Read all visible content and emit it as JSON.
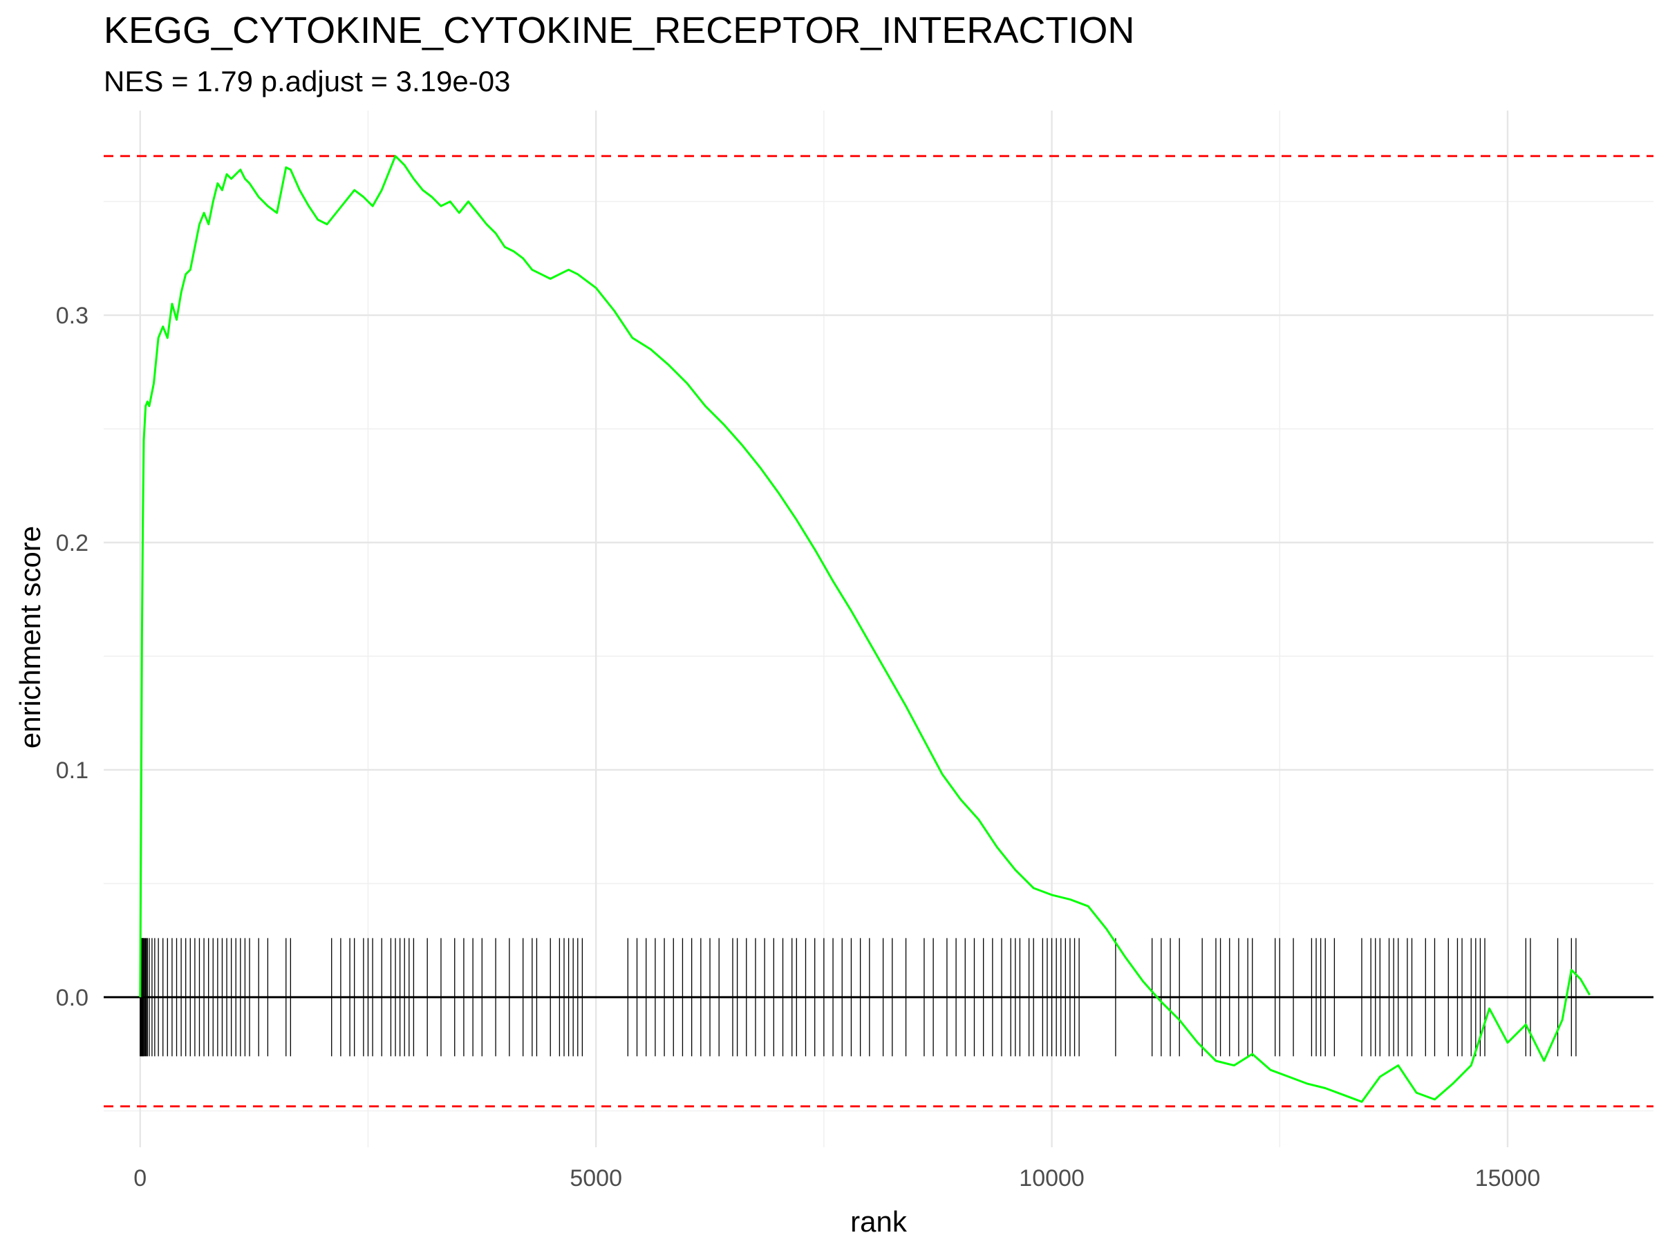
{
  "chart_data": {
    "type": "line",
    "title": "KEGG_CYTOKINE_CYTOKINE_RECEPTOR_INTERACTION",
    "subtitle": "NES = 1.79 p.adjust = 3.19e-03",
    "xlabel": "rank",
    "ylabel": "enrichment score",
    "xlim": [
      -400,
      16600
    ],
    "ylim": [
      -0.066,
      0.39
    ],
    "x_ticks": [
      0,
      5000,
      10000,
      15000
    ],
    "x_tick_labels": [
      "0",
      "5000",
      "10000",
      "15000"
    ],
    "y_ticks": [
      0.0,
      0.1,
      0.2,
      0.3
    ],
    "y_tick_labels": [
      "0.0",
      "0.1",
      "0.2",
      "0.3"
    ],
    "grid": true,
    "line_color": "#00ff00",
    "threshold_color": "#ff0000",
    "hit_color": "#000000",
    "thresholds": [
      0.37,
      -0.048
    ],
    "hit_band": [
      -0.026,
      0.026
    ],
    "series": [
      {
        "x": [
          0,
          10,
          20,
          30,
          40,
          60,
          80,
          100,
          150,
          200,
          250,
          300,
          350,
          400,
          450,
          500,
          550,
          600,
          650,
          700,
          750,
          800,
          850,
          900,
          950,
          1000,
          1050,
          1100,
          1150,
          1200,
          1300,
          1400,
          1500,
          1600,
          1650,
          1750,
          1850,
          1950,
          2050,
          2150,
          2250,
          2350,
          2450,
          2550,
          2650,
          2750,
          2800,
          2900,
          3000,
          3100,
          3200,
          3300,
          3400,
          3500,
          3600,
          3700,
          3800,
          3900,
          4000,
          4100,
          4200,
          4300,
          4400,
          4500,
          4600,
          4700,
          4800,
          4900,
          5000,
          5200,
          5400,
          5600,
          5800,
          6000,
          6200,
          6400,
          6600,
          6800,
          7000,
          7200,
          7400,
          7600,
          7800,
          8000,
          8200,
          8400,
          8600,
          8800,
          9000,
          9200,
          9400,
          9600,
          9800,
          10000,
          10200,
          10400,
          10600,
          10800,
          11000,
          11200,
          11400,
          11600,
          11800,
          12000,
          12200,
          12400,
          12600,
          12800,
          13000,
          13200,
          13400,
          13600,
          13800,
          14000,
          14200,
          14400,
          14600,
          14800,
          15000,
          15200,
          15400,
          15600,
          15700,
          15800,
          15900
        ],
        "values": [
          0.0,
          0.08,
          0.16,
          0.21,
          0.245,
          0.26,
          0.262,
          0.26,
          0.27,
          0.29,
          0.295,
          0.29,
          0.305,
          0.298,
          0.31,
          0.318,
          0.32,
          0.33,
          0.34,
          0.345,
          0.34,
          0.35,
          0.358,
          0.355,
          0.362,
          0.36,
          0.362,
          0.364,
          0.36,
          0.358,
          0.352,
          0.348,
          0.345,
          0.365,
          0.364,
          0.355,
          0.348,
          0.342,
          0.34,
          0.345,
          0.35,
          0.355,
          0.352,
          0.348,
          0.355,
          0.365,
          0.37,
          0.366,
          0.36,
          0.355,
          0.352,
          0.348,
          0.35,
          0.345,
          0.35,
          0.345,
          0.34,
          0.336,
          0.33,
          0.328,
          0.325,
          0.32,
          0.318,
          0.316,
          0.318,
          0.32,
          0.318,
          0.315,
          0.312,
          0.302,
          0.29,
          0.285,
          0.278,
          0.27,
          0.26,
          0.252,
          0.243,
          0.233,
          0.222,
          0.21,
          0.197,
          0.183,
          0.17,
          0.156,
          0.142,
          0.128,
          0.113,
          0.098,
          0.087,
          0.078,
          0.066,
          0.056,
          0.048,
          0.045,
          0.043,
          0.04,
          0.03,
          0.018,
          0.007,
          -0.002,
          -0.01,
          -0.02,
          -0.028,
          -0.03,
          -0.025,
          -0.032,
          -0.035,
          -0.038,
          -0.04,
          -0.043,
          -0.046,
          -0.035,
          -0.03,
          -0.042,
          -0.045,
          -0.038,
          -0.03,
          -0.005,
          -0.02,
          -0.012,
          -0.028,
          -0.01,
          0.012,
          0.008,
          0.001
        ]
      }
    ],
    "hits": [
      0,
      5,
      10,
      15,
      20,
      25,
      30,
      35,
      40,
      50,
      60,
      70,
      80,
      100,
      130,
      160,
      200,
      250,
      300,
      350,
      400,
      450,
      500,
      550,
      600,
      650,
      700,
      750,
      800,
      850,
      900,
      950,
      1000,
      1050,
      1100,
      1150,
      1200,
      1300,
      1400,
      1600,
      1650,
      2100,
      2200,
      2300,
      2350,
      2450,
      2500,
      2550,
      2650,
      2750,
      2800,
      2850,
      2900,
      2950,
      3000,
      3150,
      3300,
      3450,
      3550,
      3650,
      3750,
      3900,
      4050,
      4200,
      4300,
      4350,
      4500,
      4600,
      4650,
      4700,
      4750,
      4800,
      4850,
      5350,
      5450,
      5550,
      5650,
      5750,
      5850,
      5950,
      6050,
      6150,
      6250,
      6350,
      6500,
      6550,
      6650,
      6750,
      6850,
      6950,
      7050,
      7150,
      7200,
      7300,
      7400,
      7500,
      7600,
      7700,
      7800,
      7900,
      8000,
      8150,
      8250,
      8400,
      8600,
      8700,
      8850,
      8950,
      9050,
      9150,
      9250,
      9350,
      9450,
      9550,
      9600,
      9650,
      9750,
      9800,
      9900,
      9950,
      10000,
      10050,
      10100,
      10150,
      10200,
      10250,
      10300,
      10700,
      11100,
      11200,
      11300,
      11400,
      11650,
      11800,
      11850,
      11950,
      12050,
      12150,
      12200,
      12450,
      12500,
      12650,
      12850,
      12900,
      12950,
      13000,
      13100,
      13400,
      13500,
      13550,
      13600,
      13700,
      13750,
      13800,
      13900,
      13950,
      14100,
      14200,
      14350,
      14450,
      14500,
      14600,
      14650,
      14700,
      14750,
      15200,
      15250,
      15550,
      15700,
      15750
    ]
  }
}
